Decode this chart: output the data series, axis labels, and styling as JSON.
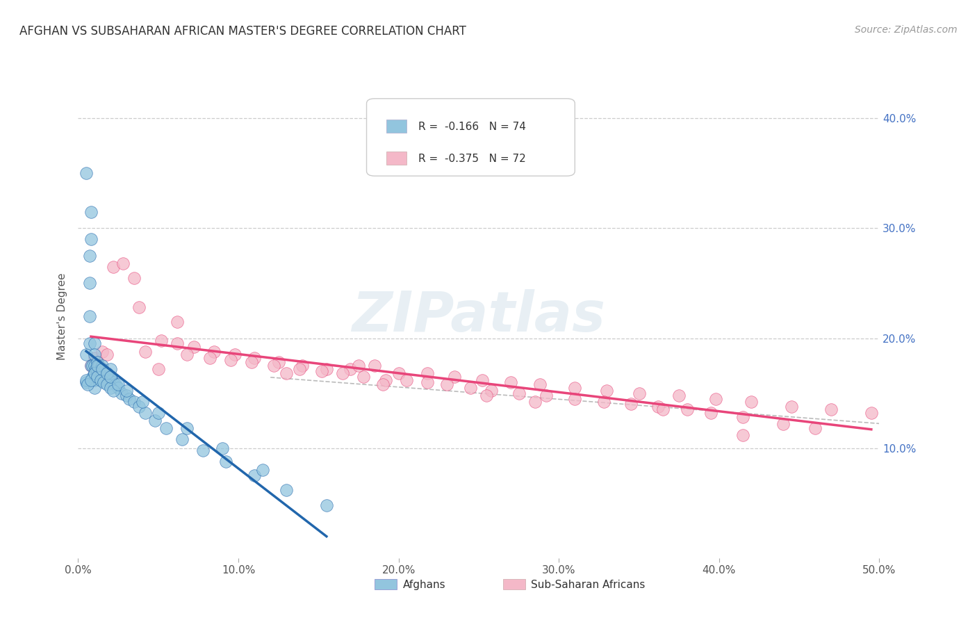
{
  "title": "AFGHAN VS SUBSAHARAN AFRICAN MASTER'S DEGREE CORRELATION CHART",
  "source": "Source: ZipAtlas.com",
  "ylabel": "Master's Degree",
  "xlim": [
    0.0,
    0.5
  ],
  "ylim": [
    0.0,
    0.44
  ],
  "xtick_labels": [
    "0.0%",
    "10.0%",
    "20.0%",
    "30.0%",
    "40.0%",
    "50.0%"
  ],
  "xtick_vals": [
    0.0,
    0.1,
    0.2,
    0.3,
    0.4,
    0.5
  ],
  "ytick_labels": [
    "10.0%",
    "20.0%",
    "30.0%",
    "40.0%"
  ],
  "ytick_vals": [
    0.1,
    0.2,
    0.3,
    0.4
  ],
  "legend_r1": "-0.166",
  "legend_n1": "74",
  "legend_r2": "-0.375",
  "legend_n2": "72",
  "legend_label1": "Afghans",
  "legend_label2": "Sub-Saharan Africans",
  "color_blue": "#92c5de",
  "color_pink": "#f4b8c8",
  "color_blue_line": "#2166ac",
  "color_pink_line": "#e8457a",
  "color_dashed": "#bbbbbb",
  "background_color": "#ffffff",
  "watermark": "ZIPatlas",
  "blue_x": [
    0.005,
    0.005,
    0.005,
    0.007,
    0.007,
    0.007,
    0.007,
    0.008,
    0.008,
    0.008,
    0.009,
    0.009,
    0.01,
    0.01,
    0.01,
    0.01,
    0.01,
    0.01,
    0.011,
    0.011,
    0.012,
    0.012,
    0.013,
    0.013,
    0.014,
    0.014,
    0.015,
    0.015,
    0.016,
    0.016,
    0.017,
    0.018,
    0.019,
    0.02,
    0.02,
    0.021,
    0.022,
    0.023,
    0.025,
    0.027,
    0.03,
    0.032,
    0.035,
    0.038,
    0.042,
    0.048,
    0.055,
    0.065,
    0.078,
    0.092,
    0.11,
    0.13,
    0.155,
    0.005,
    0.006,
    0.008,
    0.01,
    0.012,
    0.014,
    0.016,
    0.018,
    0.02,
    0.022,
    0.012,
    0.015,
    0.018,
    0.02,
    0.025,
    0.03,
    0.04,
    0.05,
    0.068,
    0.09,
    0.115
  ],
  "blue_y": [
    0.35,
    0.185,
    0.16,
    0.275,
    0.25,
    0.22,
    0.195,
    0.315,
    0.29,
    0.175,
    0.175,
    0.165,
    0.195,
    0.185,
    0.175,
    0.168,
    0.162,
    0.155,
    0.172,
    0.165,
    0.178,
    0.17,
    0.175,
    0.168,
    0.172,
    0.165,
    0.175,
    0.168,
    0.17,
    0.163,
    0.168,
    0.165,
    0.162,
    0.172,
    0.165,
    0.162,
    0.16,
    0.158,
    0.155,
    0.15,
    0.148,
    0.145,
    0.142,
    0.138,
    0.132,
    0.125,
    0.118,
    0.108,
    0.098,
    0.088,
    0.075,
    0.062,
    0.048,
    0.162,
    0.158,
    0.162,
    0.168,
    0.165,
    0.162,
    0.16,
    0.158,
    0.155,
    0.152,
    0.175,
    0.172,
    0.168,
    0.165,
    0.158,
    0.152,
    0.142,
    0.132,
    0.118,
    0.1,
    0.08
  ],
  "pink_x": [
    0.008,
    0.01,
    0.01,
    0.012,
    0.015,
    0.018,
    0.022,
    0.028,
    0.035,
    0.042,
    0.052,
    0.062,
    0.072,
    0.085,
    0.098,
    0.11,
    0.125,
    0.14,
    0.155,
    0.17,
    0.185,
    0.2,
    0.218,
    0.235,
    0.252,
    0.27,
    0.288,
    0.31,
    0.33,
    0.35,
    0.375,
    0.398,
    0.42,
    0.445,
    0.47,
    0.495,
    0.068,
    0.082,
    0.095,
    0.108,
    0.122,
    0.138,
    0.152,
    0.165,
    0.178,
    0.192,
    0.205,
    0.218,
    0.23,
    0.245,
    0.258,
    0.275,
    0.292,
    0.31,
    0.328,
    0.345,
    0.362,
    0.38,
    0.395,
    0.415,
    0.44,
    0.46,
    0.05,
    0.19,
    0.255,
    0.365,
    0.038,
    0.13,
    0.285,
    0.415,
    0.062,
    0.175
  ],
  "pink_y": [
    0.175,
    0.182,
    0.168,
    0.178,
    0.188,
    0.185,
    0.265,
    0.268,
    0.255,
    0.188,
    0.198,
    0.195,
    0.192,
    0.188,
    0.185,
    0.182,
    0.178,
    0.175,
    0.172,
    0.172,
    0.175,
    0.168,
    0.168,
    0.165,
    0.162,
    0.16,
    0.158,
    0.155,
    0.152,
    0.15,
    0.148,
    0.145,
    0.142,
    0.138,
    0.135,
    0.132,
    0.185,
    0.182,
    0.18,
    0.178,
    0.175,
    0.172,
    0.17,
    0.168,
    0.165,
    0.162,
    0.162,
    0.16,
    0.158,
    0.155,
    0.152,
    0.15,
    0.148,
    0.145,
    0.142,
    0.14,
    0.138,
    0.135,
    0.132,
    0.128,
    0.122,
    0.118,
    0.172,
    0.158,
    0.148,
    0.135,
    0.228,
    0.168,
    0.142,
    0.112,
    0.215,
    0.175
  ]
}
